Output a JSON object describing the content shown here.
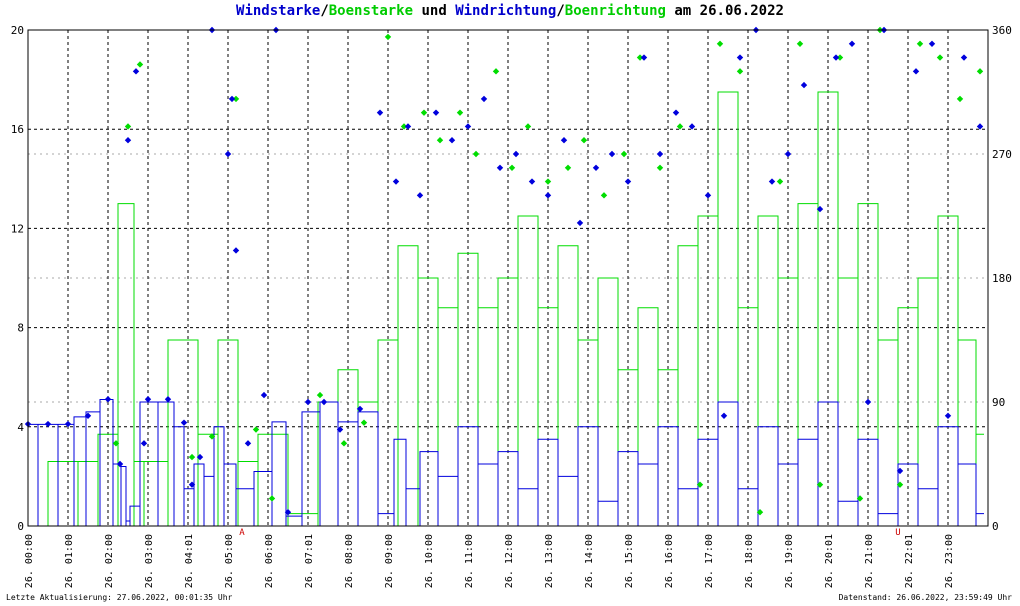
{
  "title": {
    "part1": "Windstarke",
    "sep1": "/",
    "part2": "Boenstarke",
    "part3": " und ",
    "part4": "Windrichtung",
    "sep2": "/",
    "part5": "Boenrichtung",
    "part6": " am 26.06.2022"
  },
  "footer": {
    "left": "Letzte Aktualisierung: 27.06.2022, 00:01:35 Uhr",
    "right": "Datenstand: 26.06.2022, 23:59:49 Uhr"
  },
  "colors": {
    "wind": "#0000dd",
    "gust": "#00dd00",
    "grid": "#000000",
    "marker": "#cc0000"
  },
  "chart_data": {
    "type": "line",
    "title": "Windstarke/Boenstarke und Windrichtung/Boenrichtung am 26.06.2022",
    "ylim_left": [
      0,
      20
    ],
    "ylim_right": [
      0,
      360
    ],
    "y_ticks_left": [
      "0",
      "4",
      "8",
      "12",
      "16",
      "20"
    ],
    "y_ticks_right": [
      "0",
      "90",
      "180",
      "270",
      "360"
    ],
    "x_ticks": [
      "26. 00:00",
      "26. 01:00",
      "26. 02:00",
      "26. 03:00",
      "26. 04:01",
      "26. 05:00",
      "26. 06:00",
      "26. 07:01",
      "26. 08:00",
      "26. 09:00",
      "26. 10:00",
      "26. 11:00",
      "26. 12:00",
      "26. 13:00",
      "26. 14:00",
      "26. 15:00",
      "26. 16:00",
      "26. 17:00",
      "26. 18:00",
      "26. 19:00",
      "26. 20:01",
      "26. 21:00",
      "26. 22:01",
      "26. 23:00"
    ],
    "markers": [
      {
        "hour": 5.35,
        "label": "A"
      },
      {
        "hour": 21.75,
        "label": "U"
      }
    ],
    "series": [
      {
        "name": "Windstarke",
        "axis": "left",
        "kind": "line",
        "x": [
          0,
          0.5,
          1,
          1.3,
          1.6,
          2.0,
          2.25,
          2.4,
          2.5,
          2.6,
          3.0,
          3.5,
          3.8,
          4.0,
          4.3,
          4.5,
          4.8,
          5.0,
          5.4,
          5.9,
          6.3,
          6.6,
          7.1,
          7.5,
          8.0,
          8.5,
          9.0,
          9.3,
          9.6,
          10.0,
          10.5,
          11.0,
          11.5,
          12.0,
          12.5,
          13.0,
          13.5,
          14.0,
          14.5,
          15.0,
          15.5,
          16.0,
          16.5,
          17.0,
          17.5,
          18.0,
          18.5,
          19.0,
          19.5,
          20.0,
          20.5,
          21.0,
          21.5,
          22.0,
          22.5,
          23.0,
          23.5,
          23.9
        ],
        "y": [
          4.1,
          4.1,
          4.1,
          4.4,
          4.6,
          5.1,
          2.5,
          2.4,
          0.2,
          0.8,
          5.0,
          5.0,
          4.0,
          1.5,
          2.5,
          2.0,
          4.0,
          2.5,
          1.5,
          2.2,
          4.2,
          0.4,
          4.6,
          5.0,
          4.2,
          4.6,
          0.5,
          3.5,
          1.5,
          3.0,
          2.0,
          4.0,
          2.5,
          3.0,
          1.5,
          3.5,
          2.0,
          4.0,
          1.0,
          3.0,
          2.5,
          4.0,
          1.5,
          3.5,
          5.0,
          1.5,
          4.0,
          2.5,
          3.5,
          5.0,
          1.0,
          3.5,
          0.5,
          2.5,
          1.5,
          4.0,
          2.5,
          0.5
        ]
      },
      {
        "name": "Boenstarke",
        "axis": "left",
        "kind": "line",
        "x": [
          0,
          1.0,
          1.5,
          2.0,
          2.5,
          2.8,
          3.0,
          4.0,
          4.5,
          5.0,
          5.5,
          6.0,
          7.0,
          7.5,
          8.0,
          8.5,
          9.0,
          9.5,
          10.0,
          10.5,
          11.0,
          11.5,
          12.0,
          12.5,
          13.0,
          13.5,
          14.0,
          14.5,
          15.0,
          15.5,
          16.0,
          16.5,
          17.0,
          17.5,
          18.0,
          18.5,
          19.0,
          19.5,
          20.0,
          20.5,
          21.0,
          21.5,
          22.0,
          22.5,
          23.0,
          23.5,
          23.9
        ],
        "y": [
          0,
          2.6,
          2.6,
          3.7,
          13.0,
          2.6,
          2.6,
          7.5,
          3.7,
          7.5,
          2.6,
          3.7,
          0.5,
          5.0,
          6.3,
          5.0,
          7.5,
          11.3,
          10.0,
          8.8,
          11.0,
          8.8,
          10.0,
          12.5,
          8.8,
          11.3,
          7.5,
          10.0,
          6.3,
          8.8,
          6.3,
          11.3,
          12.5,
          17.5,
          8.8,
          12.5,
          10.0,
          13.0,
          17.5,
          10.0,
          13.0,
          7.5,
          8.8,
          10.0,
          12.5,
          7.5,
          3.7
        ]
      },
      {
        "name": "Windrichtung",
        "axis": "right",
        "kind": "scatter",
        "x": [
          0.0,
          0.5,
          1.0,
          1.5,
          2.0,
          2.3,
          2.5,
          2.7,
          2.9,
          3.0,
          3.5,
          3.9,
          4.1,
          4.3,
          4.6,
          5.0,
          5.1,
          5.2,
          5.5,
          5.9,
          6.2,
          6.5,
          7.0,
          7.4,
          7.8,
          8.3,
          8.8,
          9.2,
          9.5,
          9.8,
          10.2,
          10.6,
          11.0,
          11.4,
          11.8,
          12.2,
          12.6,
          13.0,
          13.4,
          13.8,
          14.2,
          14.6,
          15.0,
          15.4,
          15.8,
          16.2,
          16.6,
          17.0,
          17.4,
          17.8,
          18.2,
          18.6,
          19.0,
          19.4,
          19.8,
          20.2,
          20.6,
          21.0,
          21.4,
          21.8,
          22.2,
          22.6,
          23.0,
          23.4,
          23.8
        ],
        "y": [
          74,
          74,
          74,
          80,
          92,
          45,
          280,
          330,
          60,
          92,
          92,
          75,
          30,
          50,
          360,
          270,
          310,
          200,
          60,
          95,
          360,
          10,
          90,
          90,
          70,
          85,
          300,
          250,
          290,
          240,
          300,
          280,
          290,
          310,
          260,
          270,
          250,
          240,
          280,
          220,
          260,
          270,
          250,
          340,
          270,
          300,
          290,
          240,
          80,
          340,
          360,
          250,
          270,
          320,
          230,
          340,
          350,
          90,
          360,
          40,
          330,
          350,
          80,
          340,
          290
        ]
      },
      {
        "name": "Boenrichtung",
        "axis": "right",
        "kind": "scatter",
        "x": [
          2.2,
          2.5,
          2.8,
          4.1,
          4.6,
          5.2,
          5.7,
          6.1,
          7.3,
          7.9,
          8.4,
          9.0,
          9.4,
          9.9,
          10.3,
          10.8,
          11.2,
          11.7,
          12.1,
          12.5,
          13.0,
          13.5,
          13.9,
          14.4,
          14.9,
          15.3,
          15.8,
          16.3,
          16.8,
          17.3,
          17.8,
          18.3,
          18.8,
          19.3,
          19.8,
          20.3,
          20.8,
          21.3,
          21.8,
          22.3,
          22.8,
          23.3,
          23.8
        ],
        "y": [
          60,
          290,
          335,
          50,
          65,
          310,
          70,
          20,
          95,
          60,
          75,
          355,
          290,
          300,
          280,
          300,
          270,
          330,
          260,
          290,
          250,
          260,
          280,
          240,
          270,
          340,
          260,
          290,
          30,
          350,
          330,
          10,
          250,
          350,
          30,
          340,
          20,
          360,
          30,
          350,
          340,
          310,
          330
        ]
      }
    ]
  }
}
